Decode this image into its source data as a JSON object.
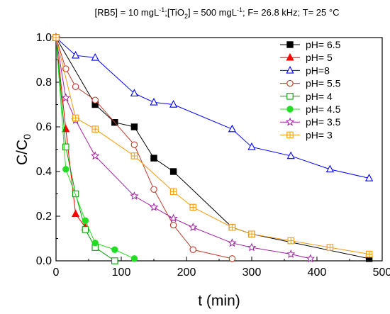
{
  "chart_data": {
    "type": "line",
    "title_parts": {
      "a": "[RB5] = 10 mgL",
      "a_sup": "-1",
      "b": ";[TiO",
      "b_sub": "2",
      "c": "] = 500 mgL",
      "c_sup": "-1",
      "d": "; F= 26.8 kHz; T= 25 °C"
    },
    "xlabel": "t (min)",
    "ylabel_main": "C/C",
    "ylabel_sub": "0",
    "xlim": [
      0,
      500
    ],
    "ylim": [
      0,
      1.0
    ],
    "xticks": [
      0,
      100,
      200,
      300,
      400,
      500
    ],
    "xtick_labels": [
      "0",
      "100",
      "200",
      "300",
      "400",
      "500"
    ],
    "yticks": [
      0.0,
      0.2,
      0.4,
      0.6,
      0.8,
      1.0
    ],
    "ytick_labels": [
      "0.0",
      "0.2",
      "0.4",
      "0.6",
      "0.8",
      "1.0"
    ],
    "legend_position": "top-right",
    "series": [
      {
        "name": "pH= 6.5",
        "color": "#000000",
        "marker": "square-filled",
        "x": [
          0,
          60,
          90,
          120,
          150,
          180,
          270,
          300,
          480
        ],
        "y": [
          1.0,
          0.7,
          0.62,
          0.6,
          0.46,
          0.4,
          0.15,
          0.12,
          0.01
        ]
      },
      {
        "name": "pH= 5",
        "color": "#ff0000",
        "marker": "triangle-filled",
        "x": [
          0,
          15,
          30,
          45
        ],
        "y": [
          1.0,
          0.59,
          0.21,
          0.15
        ]
      },
      {
        "name": "pH=8",
        "color": "#0000ff",
        "marker": "triangle-open",
        "x": [
          0,
          30,
          60,
          120,
          150,
          180,
          270,
          300,
          360,
          420,
          480
        ],
        "y": [
          1.0,
          0.92,
          0.91,
          0.75,
          0.71,
          0.7,
          0.59,
          0.51,
          0.47,
          0.41,
          0.37
        ]
      },
      {
        "name": "pH= 5.5",
        "color": "#c0392b",
        "marker": "circle-open",
        "x": [
          0,
          15,
          30,
          60,
          120,
          150,
          180,
          210,
          270
        ],
        "y": [
          1.0,
          0.86,
          0.78,
          0.72,
          0.52,
          0.32,
          0.16,
          0.05,
          0.01
        ]
      },
      {
        "name": "pH= 4",
        "color": "#00a000",
        "marker": "square-open",
        "x": [
          0,
          15,
          30,
          45,
          60,
          90
        ],
        "y": [
          1.0,
          0.51,
          0.3,
          0.14,
          0.06,
          0.0
        ]
      },
      {
        "name": "pH= 4.5",
        "color": "#22dd22",
        "marker": "circle-filled",
        "x": [
          0,
          15,
          45,
          60,
          90,
          120
        ],
        "y": [
          1.0,
          0.41,
          0.18,
          0.08,
          0.05,
          0.01
        ]
      },
      {
        "name": "pH= 3.5",
        "color": "#a020a0",
        "marker": "star-open",
        "x": [
          0,
          15,
          30,
          60,
          120,
          150,
          180,
          210,
          270,
          300,
          360,
          390
        ],
        "y": [
          1.0,
          0.73,
          0.63,
          0.47,
          0.29,
          0.24,
          0.19,
          0.15,
          0.08,
          0.06,
          0.03,
          0.01
        ]
      },
      {
        "name": "pH= 3",
        "color": "#f39c12",
        "marker": "square-plus",
        "x": [
          0,
          30,
          60,
          120,
          180,
          210,
          270,
          300,
          360,
          420,
          480
        ],
        "y": [
          1.0,
          0.64,
          0.59,
          0.47,
          0.31,
          0.24,
          0.15,
          0.12,
          0.09,
          0.06,
          0.03
        ]
      }
    ]
  }
}
